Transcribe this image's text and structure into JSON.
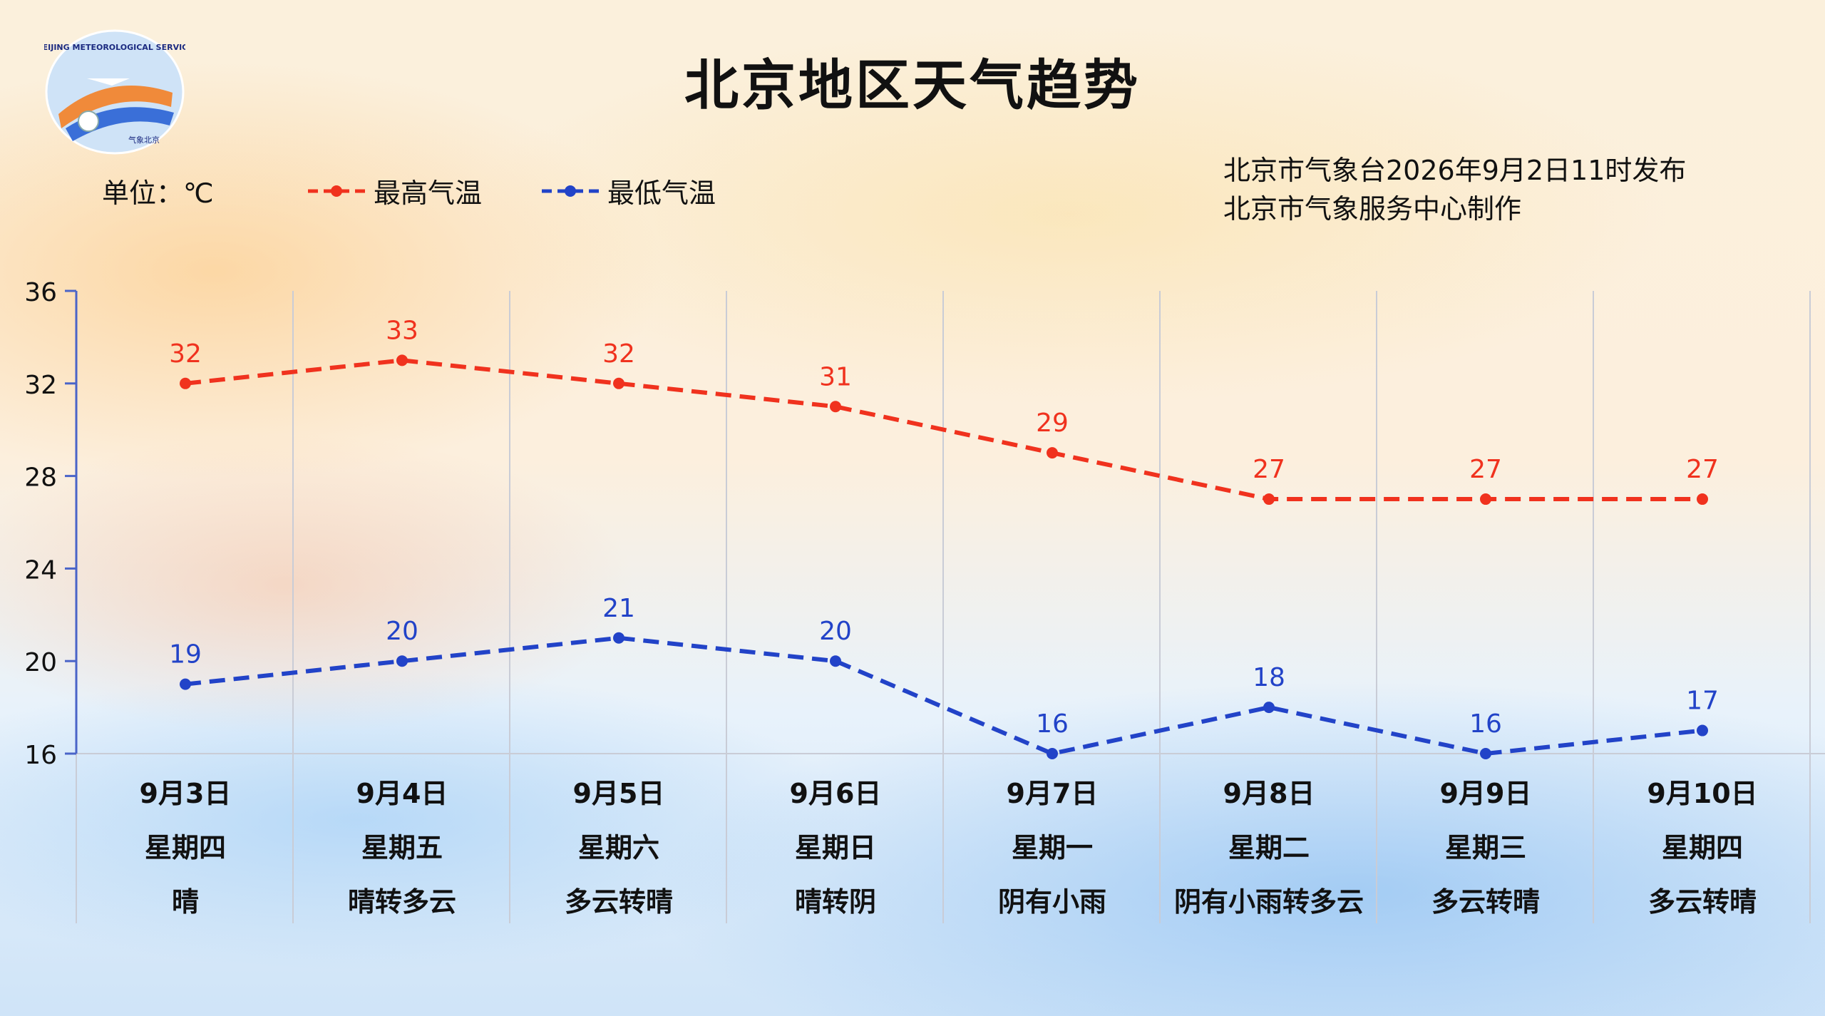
{
  "header": {
    "title": "北京地区天气趋势",
    "unit_label": "单位：℃",
    "publish_line": "北京市气象台2026年9月2日11时发布",
    "producer_line": "北京市气象服务中心制作"
  },
  "logo": {
    "text_top": "BEIJING METEOROLOGICAL SERVICE",
    "text_bottom": "气象北京"
  },
  "colors": {
    "high": "#f0321e",
    "low": "#2243c8",
    "axis": "#4a64c8"
  },
  "chart_data": {
    "type": "line",
    "title": "北京地区天气趋势",
    "ylabel": "单位：℃",
    "ylim": [
      16,
      36
    ],
    "yticks": [
      16,
      20,
      24,
      28,
      32,
      36
    ],
    "grid": "vertical",
    "legend_position": "top-left",
    "categories": [
      "9月3日",
      "9月4日",
      "9月5日",
      "9月6日",
      "9月7日",
      "9月8日",
      "9月9日",
      "9月10日"
    ],
    "weekdays": [
      "星期四",
      "星期五",
      "星期六",
      "星期日",
      "星期一",
      "星期二",
      "星期三",
      "星期四"
    ],
    "weather": [
      "晴",
      "晴转多云",
      "多云转晴",
      "晴转阴",
      "阴有小雨",
      "阴有小雨转多云",
      "多云转晴",
      "多云转晴"
    ],
    "series": [
      {
        "name": "最高气温",
        "values": [
          32,
          33,
          32,
          31,
          29,
          27,
          27,
          27
        ]
      },
      {
        "name": "最低气温",
        "values": [
          19,
          20,
          21,
          20,
          16,
          18,
          16,
          17
        ]
      }
    ]
  }
}
